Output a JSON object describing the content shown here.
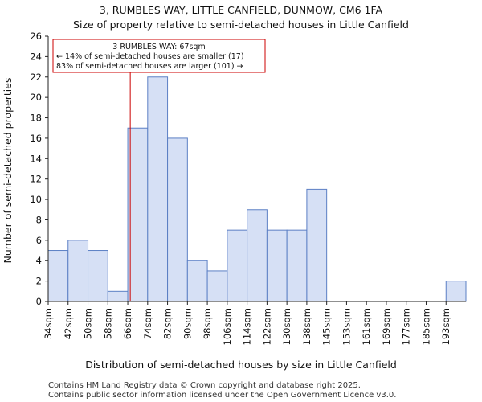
{
  "chart_data": {
    "type": "bar",
    "title": "3, RUMBLES WAY, LITTLE CANFIELD, DUNMOW, CM6 1FA",
    "subtitle": "Size of property relative to semi-detached houses in Little Canfield",
    "xlabel": "Distribution of semi-detached houses by size in Little Canfield",
    "ylabel": "Number of semi-detached properties",
    "ylim": [
      0,
      26
    ],
    "yticks": [
      0,
      2,
      4,
      6,
      8,
      10,
      12,
      14,
      16,
      18,
      20,
      22,
      24,
      26
    ],
    "bin_edges": [
      34,
      42,
      50,
      58,
      66,
      74,
      82,
      90,
      98,
      106,
      114,
      122,
      130,
      138,
      145,
      153,
      161,
      169,
      177,
      185,
      193,
      201
    ],
    "categories": [
      "34sqm",
      "42sqm",
      "50sqm",
      "58sqm",
      "66sqm",
      "74sqm",
      "82sqm",
      "90sqm",
      "98sqm",
      "106sqm",
      "114sqm",
      "122sqm",
      "130sqm",
      "138sqm",
      "145sqm",
      "153sqm",
      "161sqm",
      "169sqm",
      "177sqm",
      "185sqm",
      "193sqm"
    ],
    "values": [
      5,
      6,
      5,
      1,
      17,
      22,
      16,
      4,
      3,
      7,
      9,
      7,
      7,
      11,
      0,
      0,
      0,
      0,
      0,
      0,
      2
    ],
    "bar_fill": "#d6e0f5",
    "bar_edge": "#5b7fc4",
    "property_line": {
      "value": 67,
      "color": "#cc0000"
    },
    "annotation": {
      "line1": "3 RUMBLES WAY: 67sqm",
      "line2": "← 14% of semi-detached houses are smaller (17)",
      "line3": "83% of semi-detached houses are larger (101) →",
      "border_color": "#cc0000"
    },
    "grid": false
  },
  "footer": {
    "line1": "Contains HM Land Registry data © Crown copyright and database right 2025.",
    "line2": "Contains public sector information licensed under the Open Government Licence v3.0."
  }
}
